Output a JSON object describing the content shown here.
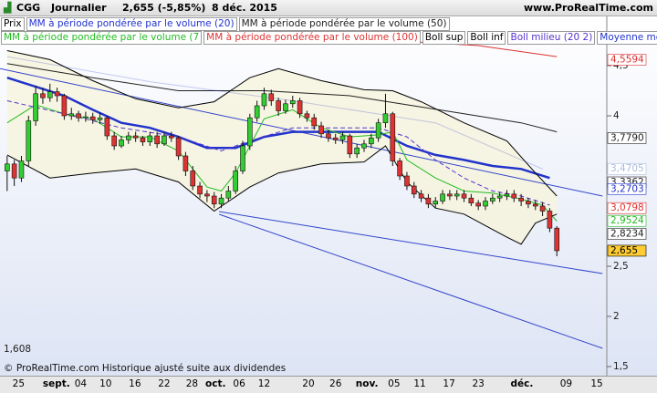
{
  "header": {
    "symbol": "CGG",
    "period": "Journalier",
    "quote": "2,655 (-5,85%)",
    "date": "8 déc. 2015",
    "site": "www.ProRealTime.com"
  },
  "footer": "© ProRealTime.com Historique ajusté suite aux dividendes",
  "chart_data": {
    "type": "candlestick",
    "price_name": "Prix",
    "xlim": [
      -1,
      84
    ],
    "ylim": [
      1.55,
      4.95
    ],
    "yticks": [
      {
        "value": 4.5,
        "label": "4,5"
      },
      4,
      {
        "value": 2.5,
        "label": "2,5"
      },
      2,
      {
        "value": 1.5,
        "label": "1,5"
      }
    ],
    "y_min_label": {
      "value": 1.608,
      "label": "1,608"
    },
    "xticks": [
      {
        "value": 1.6,
        "label": "25"
      },
      {
        "value": 6.9,
        "label": "sept."
      },
      {
        "value": 10.3,
        "label": "04"
      },
      {
        "value": 13.8,
        "label": "10"
      },
      {
        "value": 17.9,
        "label": "16"
      },
      {
        "value": 22,
        "label": "22"
      },
      {
        "value": 25.9,
        "label": "28"
      },
      {
        "value": 29.2,
        "label": "oct."
      },
      {
        "value": 32.5,
        "label": "06"
      },
      {
        "value": 36,
        "label": "12"
      },
      {
        "value": 42.2,
        "label": "20"
      },
      {
        "value": 46,
        "label": "26"
      },
      {
        "value": 50.4,
        "label": "nov."
      },
      {
        "value": 54.2,
        "label": "05"
      },
      {
        "value": 57.8,
        "label": "11"
      },
      {
        "value": 61.9,
        "label": "17"
      },
      {
        "value": 66,
        "label": "23"
      },
      {
        "value": 72.1,
        "label": "déc."
      },
      {
        "value": 78.3,
        "label": "09"
      },
      {
        "value": 82.6,
        "label": "15"
      }
    ],
    "up_color": "#33cc33",
    "down_color": "#dd3333",
    "open": [
      3.45,
      3.52,
      3.38,
      3.55,
      3.95,
      4.22,
      4.18,
      4.24,
      4.2,
      4.0,
      4.02,
      3.98,
      3.99,
      3.96,
      3.98,
      3.8,
      3.7,
      3.76,
      3.8,
      3.78,
      3.74,
      3.8,
      3.72,
      3.8,
      3.78,
      3.6,
      3.45,
      3.3,
      3.22,
      3.2,
      3.12,
      3.18,
      3.25,
      3.45,
      3.7,
      3.98,
      4.1,
      4.22,
      4.15,
      4.05,
      4.12,
      4.15,
      4.02,
      3.98,
      3.9,
      3.82,
      3.78,
      3.76,
      3.8,
      3.62,
      3.68,
      3.72,
      3.78,
      3.93,
      4.02,
      3.55,
      3.4,
      3.3,
      3.22,
      3.18,
      3.12,
      3.15,
      3.22,
      3.2,
      3.22,
      3.18,
      3.13,
      3.1,
      3.15,
      3.18,
      3.2,
      3.22,
      3.18,
      3.15,
      3.12,
      3.1,
      3.05,
      2.88
    ],
    "high": [
      3.6,
      3.56,
      3.6,
      4.0,
      4.3,
      4.28,
      4.32,
      4.28,
      4.22,
      4.08,
      4.05,
      4.04,
      4.03,
      4.03,
      4.0,
      3.84,
      3.8,
      3.84,
      3.84,
      3.8,
      3.84,
      3.84,
      3.84,
      3.84,
      3.8,
      3.64,
      3.5,
      3.34,
      3.26,
      3.24,
      3.22,
      3.3,
      3.5,
      3.75,
      4.02,
      4.15,
      4.28,
      4.26,
      4.18,
      4.16,
      4.2,
      4.18,
      4.05,
      4.02,
      3.94,
      3.86,
      3.82,
      3.84,
      3.82,
      3.72,
      3.76,
      3.82,
      3.97,
      4.22,
      4.04,
      3.58,
      3.44,
      3.34,
      3.26,
      3.22,
      3.19,
      3.26,
      3.26,
      3.26,
      3.26,
      3.22,
      3.16,
      3.19,
      3.22,
      3.24,
      3.26,
      3.26,
      3.22,
      3.18,
      3.16,
      3.14,
      3.08,
      2.9
    ],
    "low": [
      3.25,
      3.3,
      3.34,
      3.5,
      3.9,
      4.12,
      4.14,
      4.14,
      3.96,
      3.96,
      3.94,
      3.94,
      3.92,
      3.92,
      3.76,
      3.66,
      3.68,
      3.72,
      3.74,
      3.7,
      3.7,
      3.68,
      3.7,
      3.74,
      3.56,
      3.4,
      3.26,
      3.18,
      3.14,
      3.08,
      3.08,
      3.15,
      3.22,
      3.42,
      3.66,
      3.94,
      4.06,
      4.1,
      4.0,
      4.02,
      4.08,
      3.98,
      3.94,
      3.86,
      3.78,
      3.74,
      3.72,
      3.72,
      3.58,
      3.58,
      3.64,
      3.68,
      3.74,
      3.88,
      3.5,
      3.36,
      3.26,
      3.18,
      3.14,
      3.08,
      3.08,
      3.12,
      3.16,
      3.16,
      3.14,
      3.1,
      3.06,
      3.06,
      3.12,
      3.14,
      3.16,
      3.14,
      3.1,
      3.08,
      3.06,
      3.0,
      2.84,
      2.6
    ],
    "close": [
      3.52,
      3.38,
      3.55,
      3.95,
      4.22,
      4.18,
      4.24,
      4.2,
      4.0,
      4.02,
      3.98,
      3.99,
      3.96,
      3.98,
      3.8,
      3.7,
      3.76,
      3.8,
      3.78,
      3.74,
      3.8,
      3.72,
      3.8,
      3.78,
      3.6,
      3.45,
      3.3,
      3.22,
      3.2,
      3.12,
      3.18,
      3.25,
      3.45,
      3.7,
      3.98,
      4.1,
      4.22,
      4.15,
      4.05,
      4.12,
      4.15,
      4.02,
      3.98,
      3.9,
      3.82,
      3.78,
      3.76,
      3.8,
      3.62,
      3.68,
      3.72,
      3.78,
      3.93,
      4.02,
      3.55,
      3.4,
      3.3,
      3.22,
      3.18,
      3.12,
      3.15,
      3.22,
      3.2,
      3.22,
      3.18,
      3.13,
      3.1,
      3.15,
      3.18,
      3.2,
      3.22,
      3.18,
      3.15,
      3.12,
      3.1,
      3.05,
      2.88,
      2.655
    ],
    "series": [
      {
        "name": "MM à période pondérée par le volume (20)",
        "color": "#2233cc",
        "width": 2.5,
        "x": [
          0,
          4,
          8,
          12,
          16,
          20,
          24,
          28,
          32,
          36,
          40,
          44,
          48,
          52,
          56,
          60,
          64,
          68,
          72,
          76
        ],
        "values": [
          4.38,
          4.29,
          4.2,
          4.06,
          3.93,
          3.88,
          3.79,
          3.68,
          3.68,
          3.79,
          3.84,
          3.84,
          3.84,
          3.84,
          3.7,
          3.61,
          3.56,
          3.5,
          3.47,
          3.38
        ]
      },
      {
        "name": "MM à période pondérée par le volume (50)",
        "color": "#222222",
        "width": 1,
        "x": [
          0,
          12,
          24,
          36,
          48,
          56,
          64,
          72,
          77
        ],
        "values": [
          4.52,
          4.38,
          4.25,
          4.25,
          4.2,
          4.11,
          4.02,
          3.93,
          3.84
        ]
      },
      {
        "name": "MM à période pondérée par le volume (7",
        "color": "#22bb22",
        "width": 1,
        "x": [
          0,
          4,
          8,
          12,
          16,
          20,
          24,
          28,
          30,
          32,
          34,
          36,
          40,
          44,
          48,
          52,
          54,
          56,
          60,
          64,
          68,
          72,
          75,
          77
        ],
        "values": [
          3.93,
          4.11,
          4.02,
          3.97,
          3.79,
          3.79,
          3.65,
          3.29,
          3.25,
          3.43,
          3.7,
          3.97,
          4.06,
          3.88,
          3.79,
          3.81,
          3.84,
          3.56,
          3.38,
          3.25,
          3.23,
          3.17,
          3.11,
          2.95
        ]
      },
      {
        "name": "MM à période pondérée par le volume (100)",
        "color": "#dd3333",
        "width": 1,
        "x": [
          54,
          66,
          77
        ],
        "values": [
          4.75,
          4.7,
          4.59
        ]
      },
      {
        "name": "Boll sup",
        "color": "#000000",
        "width": 1,
        "x": [
          0,
          6,
          12,
          18,
          24,
          29,
          34,
          38,
          44,
          50,
          54,
          58,
          64,
          70,
          74,
          77
        ],
        "values": [
          4.65,
          4.56,
          4.35,
          4.17,
          4.08,
          4.14,
          4.38,
          4.47,
          4.35,
          4.26,
          4.25,
          4.14,
          3.93,
          3.75,
          3.43,
          3.2
        ]
      },
      {
        "name": "Boll inf",
        "color": "#000000",
        "width": 1,
        "x": [
          0,
          6,
          12,
          18,
          24,
          29,
          34,
          38,
          44,
          50,
          53,
          56,
          60,
          64,
          70,
          72,
          74,
          77
        ],
        "values": [
          3.61,
          3.38,
          3.43,
          3.47,
          3.34,
          3.05,
          3.29,
          3.43,
          3.52,
          3.54,
          3.7,
          3.34,
          3.08,
          3.02,
          2.79,
          2.72,
          2.93,
          3.02
        ]
      },
      {
        "name": "Boll milieu (20 2)",
        "color": "#5533cc",
        "width": 1,
        "dash": true,
        "x": [
          0,
          8,
          16,
          24,
          30,
          34,
          40,
          48,
          52,
          56,
          60,
          64,
          68,
          72,
          76
        ],
        "values": [
          4.15,
          4.02,
          3.88,
          3.79,
          3.65,
          3.75,
          3.88,
          3.88,
          3.88,
          3.79,
          3.56,
          3.38,
          3.25,
          3.2,
          3.11
        ]
      },
      {
        "name": "Moyenne mobile",
        "color": "#2233cc",
        "width": 1,
        "faint": true,
        "x": [
          0,
          20,
          40,
          60,
          75
        ],
        "values": [
          4.59,
          4.34,
          4.15,
          3.93,
          3.47
        ]
      }
    ],
    "trendlines": [
      {
        "x": [
          -1,
          83.4
        ],
        "values": [
          4.47,
          3.2
        ],
        "color": "#3344cc"
      },
      {
        "x": [
          29.7,
          83.4
        ],
        "values": [
          3.045,
          2.427
        ],
        "color": "#3344cc"
      },
      {
        "x": [
          29.7,
          83.4
        ],
        "values": [
          3.018,
          1.682
        ],
        "color": "#3344cc"
      }
    ],
    "last_values": [
      {
        "value": 4.5594,
        "label": "4,5594",
        "color": "#dd3333"
      },
      {
        "value": 3.779,
        "label": "3,7790",
        "color": "#222222"
      },
      {
        "value": 3.4705,
        "label": "3,4705",
        "color": "#aabbdd"
      },
      {
        "value": 3.3362,
        "label": "3,3362",
        "color": "#222222"
      },
      {
        "value": 3.2703,
        "label": "3,2703",
        "color": "#2233cc"
      },
      {
        "value": 3.0798,
        "label": "3,0798",
        "color": "#dd3333"
      },
      {
        "value": 2.9524,
        "label": "2,9524",
        "color": "#22bb22"
      },
      {
        "value": 2.8234,
        "label": "2,8234",
        "color": "#222222"
      },
      {
        "value": 2.655,
        "label": "2,655",
        "color": "#000000",
        "bg": "#ffcc33"
      }
    ]
  }
}
